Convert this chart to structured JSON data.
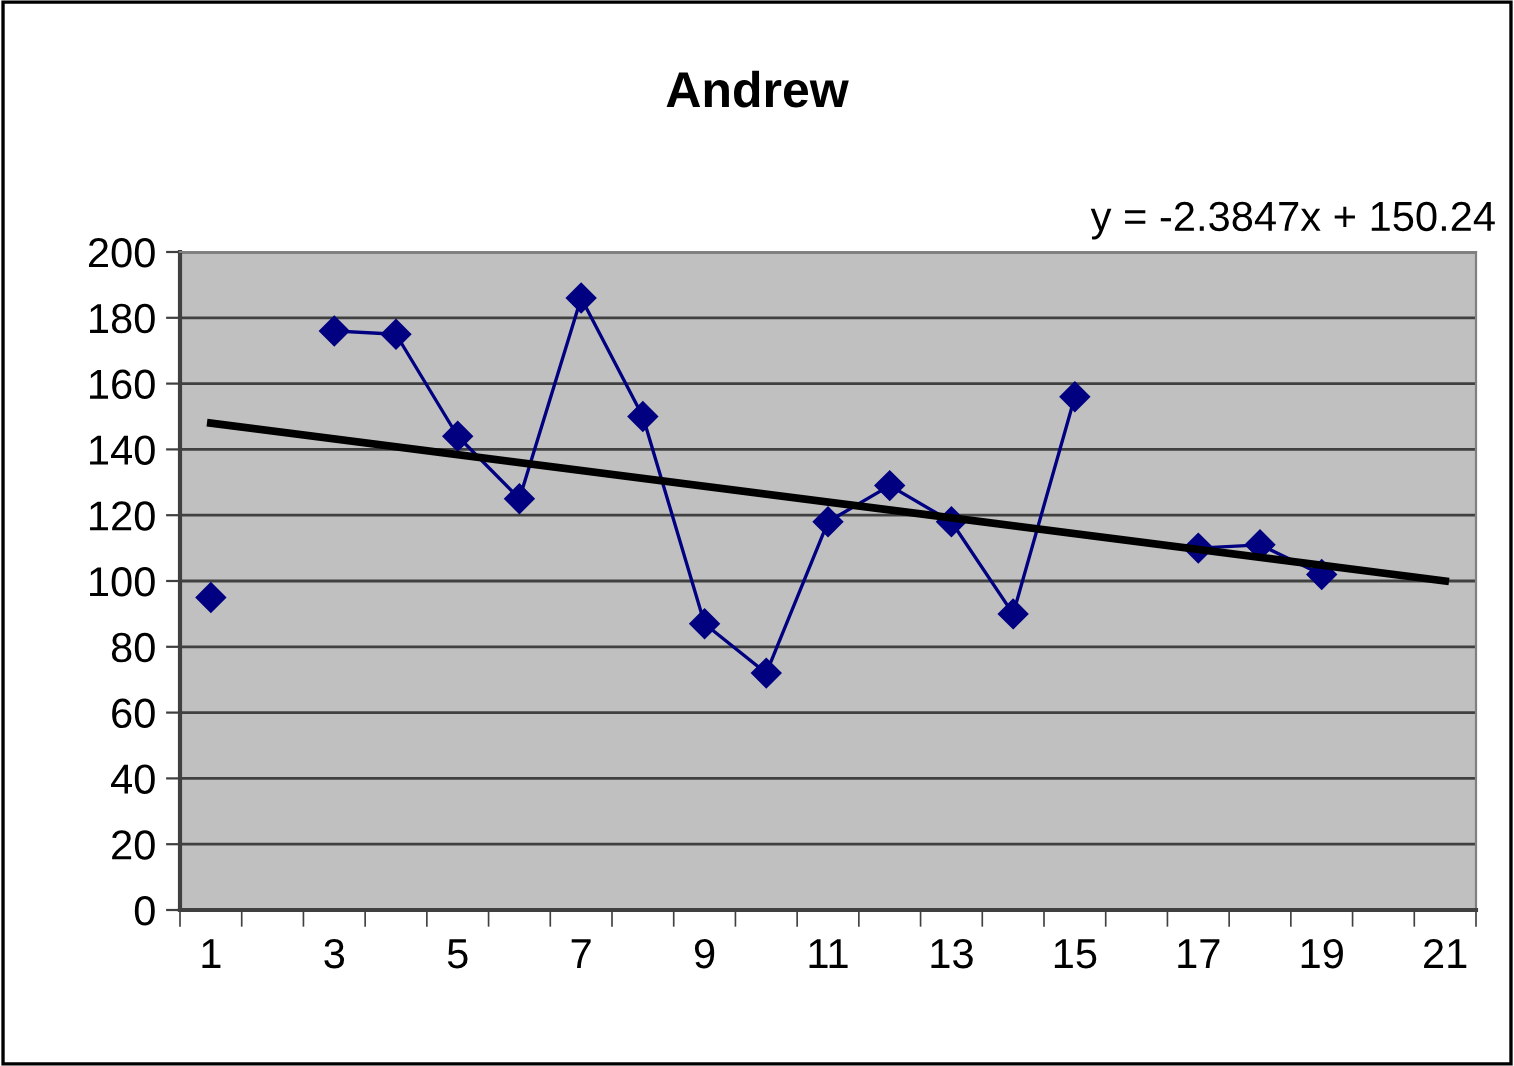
{
  "chart_data": {
    "type": "line",
    "title": "Andrew",
    "x": [
      1,
      2,
      3,
      4,
      5,
      6,
      7,
      8,
      9,
      10,
      11,
      12,
      13,
      14,
      15,
      16,
      17,
      18,
      19
    ],
    "series": [
      {
        "color": "#000080",
        "marker": "diamond",
        "values": [
          95,
          null,
          176,
          175,
          144,
          125,
          186,
          150,
          87,
          72,
          118,
          129,
          118,
          90,
          156,
          null,
          110,
          111,
          102
        ]
      },
      {
        "color": "#000000",
        "marker": "none",
        "x": [
          1,
          21
        ],
        "values": [
          148,
          100
        ]
      }
    ],
    "annotations": [
      "y = -2.3847x + 150.24"
    ],
    "xlim": [
      0.5,
      21.5
    ],
    "xticks": [
      1,
      3,
      5,
      7,
      9,
      11,
      13,
      15,
      17,
      19,
      21
    ],
    "ylim": [
      0,
      200
    ],
    "yticks": [
      0,
      20,
      40,
      60,
      80,
      100,
      120,
      140,
      160,
      180,
      200
    ],
    "grid": "y",
    "legend": false
  }
}
